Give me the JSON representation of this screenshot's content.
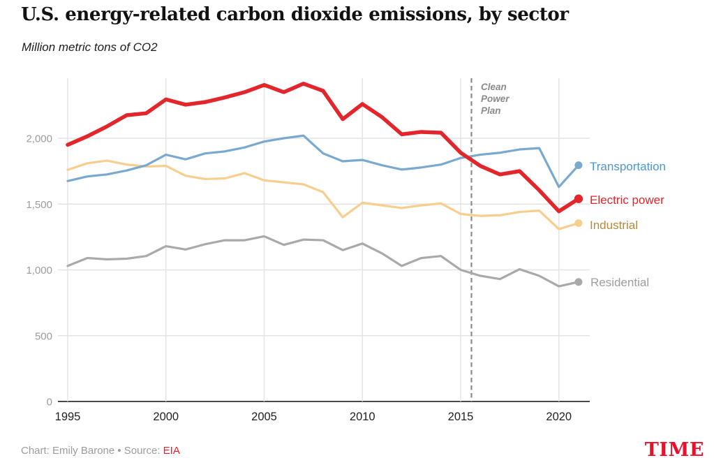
{
  "header": {
    "title": "U.S. energy-related carbon dioxide emissions, by sector",
    "subtitle": "Million metric tons of CO2"
  },
  "chart_data": {
    "type": "line",
    "x_label": "",
    "y_label": "Million metric tons of CO2",
    "x": [
      1995,
      1996,
      1997,
      1998,
      1999,
      2000,
      2001,
      2002,
      2003,
      2004,
      2005,
      2006,
      2007,
      2008,
      2009,
      2010,
      2011,
      2012,
      2013,
      2014,
      2015,
      2016,
      2017,
      2018,
      2019,
      2020,
      2021
    ],
    "x_ticks": [
      1995,
      2000,
      2005,
      2010,
      2015,
      2020
    ],
    "x_tick_labels": [
      "1995",
      "2000",
      "2005",
      "2010",
      "2015",
      "2020"
    ],
    "y_ticks": [
      0,
      500,
      1000,
      1500,
      2000
    ],
    "y_tick_labels": [
      "0",
      "500",
      "1,000",
      "1,500",
      "2,000"
    ],
    "ylim": [
      0,
      2455
    ],
    "xlim": [
      1994.5,
      2021.6
    ],
    "grid": true,
    "legend_position": "right-of-line-endpoints",
    "series": [
      {
        "name": "Transportation",
        "color": "#7AA9D0",
        "label_color": "#4E96D1",
        "line_width": 3.2,
        "values": [
          1675,
          1710,
          1725,
          1755,
          1795,
          1875,
          1840,
          1885,
          1900,
          1930,
          1975,
          2000,
          2020,
          1885,
          1825,
          1835,
          1795,
          1762,
          1778,
          1800,
          1850,
          1875,
          1890,
          1915,
          1925,
          1630,
          1795
        ]
      },
      {
        "name": "Electric power",
        "color": "#E2262B",
        "label_color": "#E2262B",
        "line_width": 5.5,
        "values": [
          1950,
          2015,
          2090,
          2175,
          2190,
          2295,
          2255,
          2275,
          2310,
          2350,
          2405,
          2350,
          2415,
          2360,
          2145,
          2260,
          2160,
          2030,
          2048,
          2042,
          1890,
          1790,
          1725,
          1750,
          1605,
          1445,
          1540
        ]
      },
      {
        "name": "Industrial",
        "color": "#F7CE8E",
        "label_color": "#B5893F",
        "line_width": 3.2,
        "values": [
          1760,
          1810,
          1830,
          1800,
          1785,
          1790,
          1715,
          1690,
          1695,
          1735,
          1680,
          1665,
          1650,
          1590,
          1400,
          1510,
          1490,
          1470,
          1490,
          1505,
          1425,
          1410,
          1415,
          1440,
          1450,
          1310,
          1355
        ]
      },
      {
        "name": "Residential",
        "color": "#A9A9A9",
        "label_color": "#9E9E9E",
        "line_width": 3.2,
        "values": [
          1030,
          1090,
          1080,
          1085,
          1105,
          1180,
          1155,
          1195,
          1225,
          1225,
          1255,
          1190,
          1230,
          1225,
          1150,
          1200,
          1125,
          1030,
          1090,
          1105,
          1000,
          955,
          930,
          1005,
          955,
          875,
          908
        ]
      }
    ],
    "annotation": {
      "x": 2015.55,
      "label_lines": [
        "Clean",
        "Power",
        "Plan"
      ],
      "color": "#8A8A8A",
      "line_style": "dashed"
    }
  },
  "footer": {
    "credit_prefix": "Chart: Emily Barone • Source: ",
    "source_link": "EIA",
    "link_color": "#EE1C24"
  },
  "branding": {
    "logo": "TIME",
    "color": "#E8112D"
  }
}
